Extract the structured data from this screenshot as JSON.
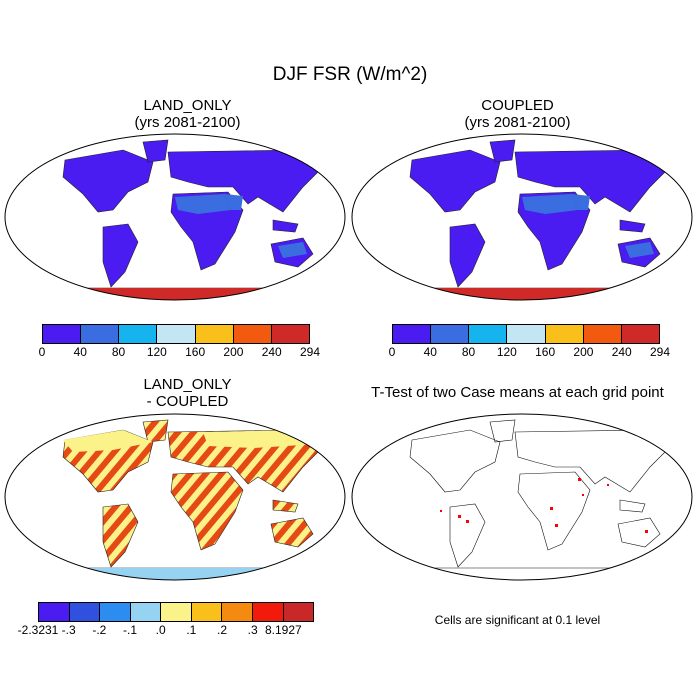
{
  "title": "DJF FSR (W/m^2)",
  "panels": [
    {
      "title_line1": "LAND_ONLY",
      "title_line2": "(yrs 2081-2100)",
      "legend": {
        "colors": [
          "#4a1cf2",
          "#3a6ee0",
          "#15b4ee",
          "#c2e6f4",
          "#f9c01c",
          "#f25a10",
          "#d02a28"
        ],
        "labels": [
          "0",
          "40",
          "80",
          "120",
          "160",
          "200",
          "240",
          "294"
        ]
      }
    },
    {
      "title_line1": "COUPLED",
      "title_line2": "(yrs 2081-2100)",
      "legend": {
        "colors": [
          "#4a1cf2",
          "#3a6ee0",
          "#15b4ee",
          "#c2e6f4",
          "#f9c01c",
          "#f25a10",
          "#d02a28"
        ],
        "labels": [
          "0",
          "40",
          "80",
          "120",
          "160",
          "200",
          "240",
          "294"
        ]
      }
    },
    {
      "title_line1": "LAND_ONLY",
      "title_line2": "- COUPLED",
      "legend": {
        "colors": [
          "#4a1cf2",
          "#3050e0",
          "#2d8cf0",
          "#96d2f2",
          "#fbf28a",
          "#f9c01c",
          "#f58a10",
          "#f21a0a",
          "#c82828"
        ],
        "labels": [
          "-2.3231",
          "-.3",
          "-.2",
          "-.1",
          ".0",
          ".1",
          ".2",
          ".3",
          "8.1927"
        ]
      }
    },
    {
      "title": "T-Test of two Case means at each grid point",
      "note": "Cells are significant at 0.1 level"
    }
  ],
  "map_colors": {
    "land_main": "#4a1cf2",
    "land_mid": "#3a6ee0",
    "antarctica": "#d02a28",
    "diff_base": "#fbf28a",
    "diff_stripe": "#e64a14",
    "significant": "#ff0000"
  }
}
